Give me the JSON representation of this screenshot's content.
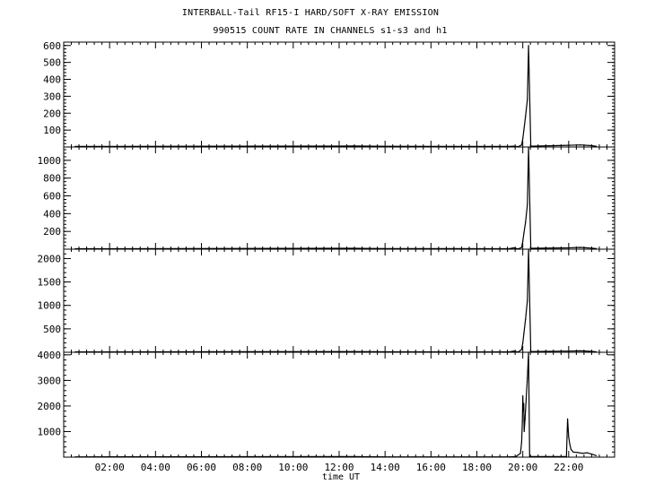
{
  "chart_data": {
    "type": "line",
    "title": "INTERBALL-Tail RF15-I HARD/SOFT X-RAY EMISSION",
    "subtitle": "990515  COUNT RATE IN CHANNELS s1-s3 and h1",
    "xlabel": "time UT",
    "xlim_hours": [
      0,
      24
    ],
    "x_tick_labels": [
      "02:00",
      "04:00",
      "06:00",
      "08:00",
      "10:00",
      "12:00",
      "14:00",
      "16:00",
      "18:00",
      "20:00",
      "22:00"
    ],
    "x_tick_hours": [
      2,
      4,
      6,
      8,
      10,
      12,
      14,
      16,
      18,
      20,
      22
    ],
    "panels": [
      {
        "ylim": [
          0,
          620
        ],
        "y_tick_values": [
          100,
          200,
          300,
          400,
          500,
          600
        ],
        "y_tick_labels": [
          "100",
          "200",
          "300",
          "400",
          "500",
          "600"
        ],
        "series": [
          {
            "points": [
              [
                0.5,
                3
              ],
              [
                12.6,
                6
              ],
              [
                13.5,
                5
              ],
              [
                14.2,
                4
              ],
              [
                19.4,
                3
              ],
              [
                19.6,
                5
              ],
              [
                19.8,
                2
              ],
              [
                19.95,
                12
              ],
              [
                20.0,
                50
              ],
              [
                20.05,
                100
              ],
              [
                20.12,
                180
              ],
              [
                20.2,
                280
              ],
              [
                20.25,
                600
              ],
              [
                20.35,
                5
              ],
              [
                22.0,
                10
              ],
              [
                22.5,
                12
              ],
              [
                23.0,
                8
              ],
              [
                23.2,
                4
              ]
            ]
          }
        ]
      },
      {
        "ylim": [
          0,
          1150
        ],
        "y_tick_values": [
          200,
          400,
          600,
          800,
          1000
        ],
        "y_tick_labels": [
          "200",
          "400",
          "600",
          "800",
          "1000"
        ],
        "series": [
          {
            "points": [
              [
                0.5,
                5
              ],
              [
                12.6,
                10
              ],
              [
                13.5,
                8
              ],
              [
                14.2,
                7
              ],
              [
                19.4,
                5
              ],
              [
                19.6,
                15
              ],
              [
                19.8,
                3
              ],
              [
                19.95,
                20
              ],
              [
                20.0,
                90
              ],
              [
                20.05,
                180
              ],
              [
                20.12,
                300
              ],
              [
                20.2,
                500
              ],
              [
                20.25,
                1150
              ],
              [
                20.35,
                10
              ],
              [
                22.0,
                15
              ],
              [
                22.5,
                20
              ],
              [
                23.0,
                12
              ],
              [
                23.2,
                6
              ]
            ]
          }
        ]
      },
      {
        "ylim": [
          0,
          2200
        ],
        "y_tick_values": [
          500,
          1000,
          1500,
          2000
        ],
        "y_tick_labels": [
          "500",
          "1000",
          "1500",
          "2000"
        ],
        "series": [
          {
            "points": [
              [
                0.5,
                8
              ],
              [
                12.6,
                15
              ],
              [
                13.5,
                12
              ],
              [
                14.2,
                10
              ],
              [
                19.4,
                8
              ],
              [
                19.6,
                25
              ],
              [
                19.8,
                5
              ],
              [
                19.95,
                60
              ],
              [
                20.0,
                200
              ],
              [
                20.05,
                400
              ],
              [
                20.12,
                700
              ],
              [
                20.2,
                1100
              ],
              [
                20.25,
                2200
              ],
              [
                20.35,
                15
              ],
              [
                22.0,
                25
              ],
              [
                22.5,
                30
              ],
              [
                23.0,
                20
              ],
              [
                23.2,
                10
              ]
            ]
          }
        ]
      },
      {
        "ylim": [
          0,
          4100
        ],
        "y_tick_values": [
          1000,
          2000,
          3000,
          4000
        ],
        "y_tick_labels": [
          "1000",
          "2000",
          "3000",
          "4000"
        ],
        "series": [
          {
            "points": [
              [
                0.5,
                10
              ],
              [
                12.6,
                20
              ],
              [
                13.5,
                15
              ],
              [
                14.2,
                12
              ],
              [
                19.4,
                10
              ],
              [
                19.7,
                20
              ],
              [
                19.9,
                150
              ],
              [
                19.95,
                600
              ],
              [
                19.98,
                1400
              ],
              [
                20.0,
                2400
              ],
              [
                20.02,
                1800
              ],
              [
                20.04,
                2100
              ],
              [
                20.06,
                1000
              ],
              [
                20.1,
                1500
              ],
              [
                20.15,
                2300
              ],
              [
                20.2,
                3100
              ],
              [
                20.25,
                4100
              ],
              [
                20.3,
                20
              ],
              [
                21.9,
                20
              ],
              [
                21.95,
                1500
              ],
              [
                22.0,
                800
              ],
              [
                22.05,
                500
              ],
              [
                22.1,
                300
              ],
              [
                22.2,
                200
              ],
              [
                22.4,
                180
              ],
              [
                22.6,
                150
              ],
              [
                22.8,
                170
              ],
              [
                23.0,
                120
              ],
              [
                23.2,
                60
              ]
            ]
          }
        ]
      }
    ]
  }
}
